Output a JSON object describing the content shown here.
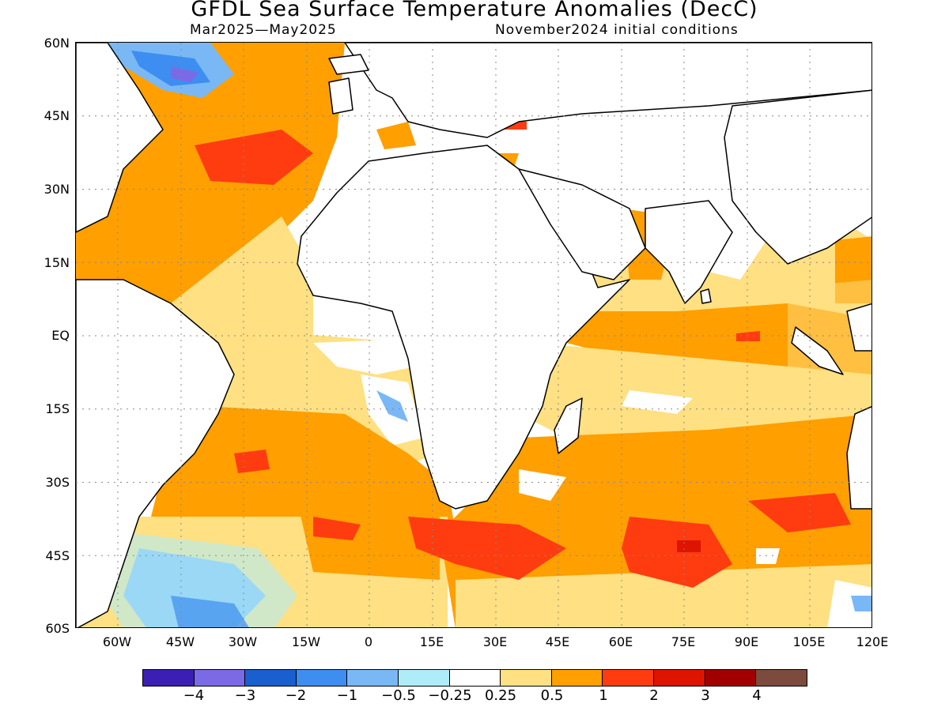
{
  "title": "GFDL Sea Surface Temperature Anomalies (DecC)",
  "subtitle_left": "Mar2025—May2025",
  "subtitle_right": "November2024 initial conditions",
  "lat_labels": [
    "60N",
    "45N",
    "30N",
    "15N",
    "EQ",
    "15S",
    "30S",
    "45S",
    "60S"
  ],
  "lon_labels": [
    "60W",
    "45W",
    "30W",
    "15W",
    "0",
    "15E",
    "30E",
    "45E",
    "60E",
    "75E",
    "90E",
    "105E",
    "120E"
  ],
  "colorbar": {
    "colors": [
      "#3b1fb5",
      "#7b6ae6",
      "#1a5fd0",
      "#3d8ef0",
      "#79b8f5",
      "#b0ecf7",
      "#ffffff",
      "#ffe082",
      "#ff9f00",
      "#ff3c10",
      "#dc1400",
      "#a00000",
      "#7b4b3d"
    ],
    "tick_labels": [
      "−4",
      "−3",
      "−2",
      "−1",
      "−0.5",
      "−0.25",
      "0.25",
      "0.5",
      "1",
      "2",
      "3",
      "4"
    ]
  },
  "map": {
    "lat_range": [
      -60,
      60
    ],
    "lon_range": [
      -70,
      120
    ],
    "grid_lines": "dotted"
  }
}
